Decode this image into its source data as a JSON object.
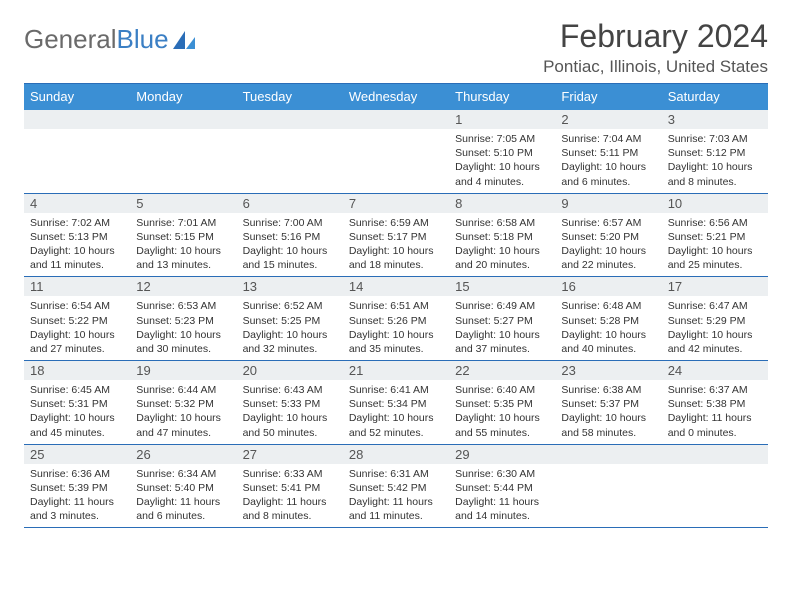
{
  "brand": {
    "part1": "General",
    "part2": "Blue"
  },
  "title": "February 2024",
  "location": "Pontiac, Illinois, United States",
  "colors": {
    "header_bg": "#3b8fd4",
    "border": "#2a6db7",
    "daynum_bg": "#eceff1",
    "text": "#333333",
    "brand_gray": "#6a6a6a",
    "brand_blue": "#3b7fc4"
  },
  "day_names": [
    "Sunday",
    "Monday",
    "Tuesday",
    "Wednesday",
    "Thursday",
    "Friday",
    "Saturday"
  ],
  "weeks": [
    [
      null,
      null,
      null,
      null,
      {
        "day": "1",
        "sunrise": "Sunrise: 7:05 AM",
        "sunset": "Sunset: 5:10 PM",
        "daylight": "Daylight: 10 hours and 4 minutes."
      },
      {
        "day": "2",
        "sunrise": "Sunrise: 7:04 AM",
        "sunset": "Sunset: 5:11 PM",
        "daylight": "Daylight: 10 hours and 6 minutes."
      },
      {
        "day": "3",
        "sunrise": "Sunrise: 7:03 AM",
        "sunset": "Sunset: 5:12 PM",
        "daylight": "Daylight: 10 hours and 8 minutes."
      }
    ],
    [
      {
        "day": "4",
        "sunrise": "Sunrise: 7:02 AM",
        "sunset": "Sunset: 5:13 PM",
        "daylight": "Daylight: 10 hours and 11 minutes."
      },
      {
        "day": "5",
        "sunrise": "Sunrise: 7:01 AM",
        "sunset": "Sunset: 5:15 PM",
        "daylight": "Daylight: 10 hours and 13 minutes."
      },
      {
        "day": "6",
        "sunrise": "Sunrise: 7:00 AM",
        "sunset": "Sunset: 5:16 PM",
        "daylight": "Daylight: 10 hours and 15 minutes."
      },
      {
        "day": "7",
        "sunrise": "Sunrise: 6:59 AM",
        "sunset": "Sunset: 5:17 PM",
        "daylight": "Daylight: 10 hours and 18 minutes."
      },
      {
        "day": "8",
        "sunrise": "Sunrise: 6:58 AM",
        "sunset": "Sunset: 5:18 PM",
        "daylight": "Daylight: 10 hours and 20 minutes."
      },
      {
        "day": "9",
        "sunrise": "Sunrise: 6:57 AM",
        "sunset": "Sunset: 5:20 PM",
        "daylight": "Daylight: 10 hours and 22 minutes."
      },
      {
        "day": "10",
        "sunrise": "Sunrise: 6:56 AM",
        "sunset": "Sunset: 5:21 PM",
        "daylight": "Daylight: 10 hours and 25 minutes."
      }
    ],
    [
      {
        "day": "11",
        "sunrise": "Sunrise: 6:54 AM",
        "sunset": "Sunset: 5:22 PM",
        "daylight": "Daylight: 10 hours and 27 minutes."
      },
      {
        "day": "12",
        "sunrise": "Sunrise: 6:53 AM",
        "sunset": "Sunset: 5:23 PM",
        "daylight": "Daylight: 10 hours and 30 minutes."
      },
      {
        "day": "13",
        "sunrise": "Sunrise: 6:52 AM",
        "sunset": "Sunset: 5:25 PM",
        "daylight": "Daylight: 10 hours and 32 minutes."
      },
      {
        "day": "14",
        "sunrise": "Sunrise: 6:51 AM",
        "sunset": "Sunset: 5:26 PM",
        "daylight": "Daylight: 10 hours and 35 minutes."
      },
      {
        "day": "15",
        "sunrise": "Sunrise: 6:49 AM",
        "sunset": "Sunset: 5:27 PM",
        "daylight": "Daylight: 10 hours and 37 minutes."
      },
      {
        "day": "16",
        "sunrise": "Sunrise: 6:48 AM",
        "sunset": "Sunset: 5:28 PM",
        "daylight": "Daylight: 10 hours and 40 minutes."
      },
      {
        "day": "17",
        "sunrise": "Sunrise: 6:47 AM",
        "sunset": "Sunset: 5:29 PM",
        "daylight": "Daylight: 10 hours and 42 minutes."
      }
    ],
    [
      {
        "day": "18",
        "sunrise": "Sunrise: 6:45 AM",
        "sunset": "Sunset: 5:31 PM",
        "daylight": "Daylight: 10 hours and 45 minutes."
      },
      {
        "day": "19",
        "sunrise": "Sunrise: 6:44 AM",
        "sunset": "Sunset: 5:32 PM",
        "daylight": "Daylight: 10 hours and 47 minutes."
      },
      {
        "day": "20",
        "sunrise": "Sunrise: 6:43 AM",
        "sunset": "Sunset: 5:33 PM",
        "daylight": "Daylight: 10 hours and 50 minutes."
      },
      {
        "day": "21",
        "sunrise": "Sunrise: 6:41 AM",
        "sunset": "Sunset: 5:34 PM",
        "daylight": "Daylight: 10 hours and 52 minutes."
      },
      {
        "day": "22",
        "sunrise": "Sunrise: 6:40 AM",
        "sunset": "Sunset: 5:35 PM",
        "daylight": "Daylight: 10 hours and 55 minutes."
      },
      {
        "day": "23",
        "sunrise": "Sunrise: 6:38 AM",
        "sunset": "Sunset: 5:37 PM",
        "daylight": "Daylight: 10 hours and 58 minutes."
      },
      {
        "day": "24",
        "sunrise": "Sunrise: 6:37 AM",
        "sunset": "Sunset: 5:38 PM",
        "daylight": "Daylight: 11 hours and 0 minutes."
      }
    ],
    [
      {
        "day": "25",
        "sunrise": "Sunrise: 6:36 AM",
        "sunset": "Sunset: 5:39 PM",
        "daylight": "Daylight: 11 hours and 3 minutes."
      },
      {
        "day": "26",
        "sunrise": "Sunrise: 6:34 AM",
        "sunset": "Sunset: 5:40 PM",
        "daylight": "Daylight: 11 hours and 6 minutes."
      },
      {
        "day": "27",
        "sunrise": "Sunrise: 6:33 AM",
        "sunset": "Sunset: 5:41 PM",
        "daylight": "Daylight: 11 hours and 8 minutes."
      },
      {
        "day": "28",
        "sunrise": "Sunrise: 6:31 AM",
        "sunset": "Sunset: 5:42 PM",
        "daylight": "Daylight: 11 hours and 11 minutes."
      },
      {
        "day": "29",
        "sunrise": "Sunrise: 6:30 AM",
        "sunset": "Sunset: 5:44 PM",
        "daylight": "Daylight: 11 hours and 14 minutes."
      },
      null,
      null
    ]
  ]
}
